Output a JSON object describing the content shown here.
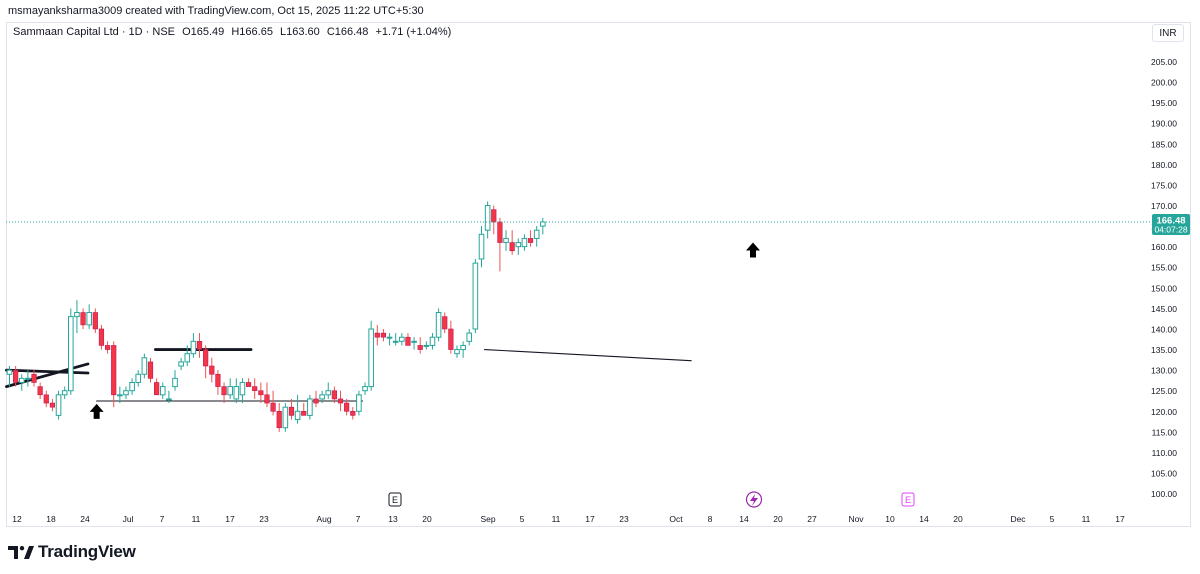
{
  "header": {
    "created_by": "msmayanksharma3009 created with TradingView.com, Oct 15, 2025 11:22 UTC+5:30"
  },
  "legend": {
    "symbol": "Sammaan Capital Ltd · 1D · NSE",
    "open": "O165.49",
    "high": "H166.65",
    "low": "L163.60",
    "close": "C166.48",
    "change": "+1.71 (+1.04%)"
  },
  "currency_button": "INR",
  "price_tag": {
    "price": "166.48",
    "countdown": "04:07:28"
  },
  "brand": "TradingView",
  "colors": {
    "up": "#26a69a",
    "down": "#ef5350",
    "down_fill": "#f23645",
    "grid_border": "#e0e3eb",
    "event_earnings": "#131722",
    "event_dividend": "#9c27b0",
    "event_future_earnings": "#e040fb"
  },
  "chart_data": {
    "type": "candlestick",
    "title": "Sammaan Capital Ltd · 1D · NSE",
    "y_axis": {
      "min": 100,
      "max": 205,
      "step": 5,
      "side": "right",
      "ticks": [
        "205.00",
        "200.00",
        "195.00",
        "190.00",
        "185.00",
        "180.00",
        "175.00",
        "170.00",
        "165.00",
        "160.00",
        "155.00",
        "150.00",
        "145.00",
        "140.00",
        "135.00",
        "130.00",
        "125.00",
        "120.00",
        "115.00",
        "110.00",
        "105.00",
        "100.00"
      ]
    },
    "x_axis": {
      "labels": [
        "12",
        "18",
        "24",
        "Jul",
        "7",
        "11",
        "17",
        "23",
        "Aug",
        "7",
        "13",
        "20",
        "Sep",
        "5",
        "11",
        "17",
        "23",
        "Oct",
        "8",
        "14",
        "20",
        "27",
        "Nov",
        "10",
        "14",
        "20",
        "Dec",
        "5",
        "11",
        "17"
      ]
    },
    "candles": [
      [
        129,
        131,
        126,
        130
      ],
      [
        130,
        131,
        126,
        127
      ],
      [
        127,
        129,
        125,
        128
      ],
      [
        128,
        130,
        126,
        128
      ],
      [
        129,
        130,
        126,
        127
      ],
      [
        126,
        127,
        123,
        124
      ],
      [
        124,
        125,
        121,
        122
      ],
      [
        122,
        123,
        120,
        121
      ],
      [
        119,
        125,
        118,
        124
      ],
      [
        124,
        126,
        123,
        125
      ],
      [
        125,
        145,
        124,
        143
      ],
      [
        143,
        147,
        139,
        144
      ],
      [
        144,
        145,
        140,
        141
      ],
      [
        141,
        146,
        140,
        144
      ],
      [
        144,
        145,
        139,
        140
      ],
      [
        140,
        141,
        135,
        136
      ],
      [
        136,
        137,
        134,
        135
      ],
      [
        136,
        137,
        121,
        124
      ],
      [
        124,
        126,
        122,
        124
      ],
      [
        124,
        126,
        123,
        125
      ],
      [
        125,
        128,
        124,
        127
      ],
      [
        127,
        130,
        126,
        129
      ],
      [
        129,
        134,
        128,
        133
      ],
      [
        132,
        133,
        127,
        128
      ],
      [
        127,
        128,
        124,
        124
      ],
      [
        124,
        127,
        123,
        126
      ],
      [
        123,
        125,
        122,
        123
      ],
      [
        126,
        130,
        125,
        128
      ],
      [
        131,
        133,
        130,
        132
      ],
      [
        132,
        136,
        131,
        134
      ],
      [
        134,
        139,
        133,
        137
      ],
      [
        137,
        139,
        133,
        135
      ],
      [
        135,
        136,
        128,
        131
      ],
      [
        131,
        133,
        127,
        129
      ],
      [
        129,
        130,
        124,
        126
      ],
      [
        126,
        127,
        122,
        124
      ],
      [
        124,
        128,
        123,
        126
      ],
      [
        123,
        128,
        122,
        126
      ],
      [
        124,
        128,
        122,
        127
      ],
      [
        127,
        128,
        126,
        126
      ],
      [
        126,
        128,
        123,
        125
      ],
      [
        125,
        127,
        122,
        124
      ],
      [
        124,
        127,
        121,
        122
      ],
      [
        122,
        125,
        119,
        120
      ],
      [
        120,
        122,
        115,
        116
      ],
      [
        116,
        122,
        115,
        121
      ],
      [
        121,
        123,
        118,
        119
      ],
      [
        118,
        124,
        117,
        120
      ],
      [
        120,
        122,
        119,
        119
      ],
      [
        119,
        124,
        118,
        123
      ],
      [
        123,
        125,
        121,
        122
      ],
      [
        123,
        125,
        122,
        124
      ],
      [
        124,
        127,
        123,
        125
      ],
      [
        125,
        126,
        122,
        123
      ],
      [
        123,
        125,
        120,
        122
      ],
      [
        122,
        123,
        119,
        120
      ],
      [
        120,
        121,
        118,
        119
      ],
      [
        120,
        125,
        119,
        124
      ],
      [
        125,
        127,
        124,
        126
      ],
      [
        126,
        142,
        125,
        140
      ],
      [
        139,
        141,
        136,
        138
      ],
      [
        139,
        140,
        137,
        138
      ],
      [
        138,
        139,
        136,
        138
      ],
      [
        137,
        139,
        136,
        137
      ],
      [
        137,
        139,
        136,
        138
      ],
      [
        138,
        139,
        136,
        136
      ],
      [
        137,
        138,
        135,
        137
      ],
      [
        136,
        138,
        134,
        135
      ],
      [
        136,
        137,
        135,
        136
      ],
      [
        136,
        139,
        135,
        138
      ],
      [
        138,
        145,
        137,
        144
      ],
      [
        143,
        144,
        139,
        140
      ],
      [
        140,
        142,
        134,
        135
      ],
      [
        134,
        136,
        133,
        135
      ],
      [
        135,
        137,
        133,
        136
      ],
      [
        137,
        140,
        136,
        139
      ],
      [
        140,
        157,
        139,
        156
      ],
      [
        157,
        165,
        155,
        163
      ],
      [
        164,
        171,
        162,
        170
      ],
      [
        169,
        170,
        163,
        166
      ],
      [
        166,
        167,
        154,
        161
      ],
      [
        161,
        164,
        159,
        162
      ],
      [
        161,
        164,
        158,
        159
      ],
      [
        160,
        162,
        158,
        161
      ],
      [
        160,
        163,
        159,
        162
      ],
      [
        162,
        164,
        160,
        161
      ],
      [
        162,
        165,
        160,
        164
      ],
      [
        165,
        167,
        163,
        166
      ]
    ],
    "annotations": {
      "black_arrow_markers": 2,
      "trend_lines": 6,
      "event_icons": [
        "E",
        "lightning",
        "E"
      ]
    }
  }
}
